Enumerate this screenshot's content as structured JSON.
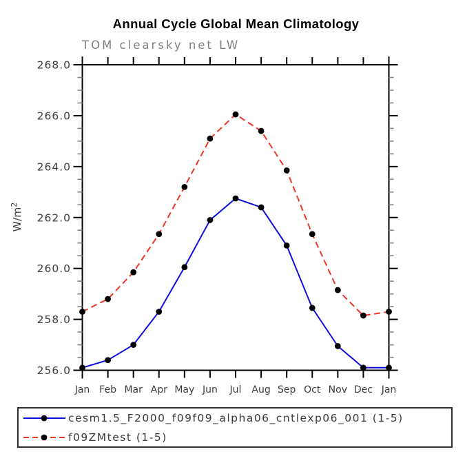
{
  "chart_data": {
    "type": "line",
    "title": "Annual Cycle Global Mean Climatology",
    "subtitle": "TOM clearsky net LW",
    "ylabel": "W/m²",
    "xlabel": "",
    "x_categories": [
      "Jan",
      "Feb",
      "Mar",
      "Apr",
      "May",
      "Jun",
      "Jul",
      "Aug",
      "Sep",
      "Oct",
      "Nov",
      "Dec",
      "Jan"
    ],
    "ylim": [
      256.0,
      268.0
    ],
    "ytick_interval": 2.0,
    "yminor_interval": 0.5,
    "ytick_labels": [
      "256.0",
      "258.0",
      "260.0",
      "262.0",
      "264.0",
      "266.0",
      "268.0"
    ],
    "grid": "off",
    "legend_position": "bottom-box",
    "series": [
      {
        "name": "cesm1.5_F2000_f09f09_alpha06_cntlexp06_001",
        "legend_label": "cesm1.5_F2000_f09f09_alpha06_cntlexp06_001 (1-5)",
        "color": "#0d0de0",
        "line_style": "solid",
        "marker": "filled-circle",
        "marker_color": "#000000",
        "values": [
          256.1,
          256.4,
          257.0,
          258.3,
          260.05,
          261.9,
          262.75,
          262.4,
          260.9,
          258.45,
          256.95,
          256.1,
          256.1
        ]
      },
      {
        "name": "f09ZMtest",
        "legend_label": "f09ZMtest (1-5)",
        "color": "#ee3526",
        "line_style": "dashed",
        "marker": "filled-circle",
        "marker_color": "#000000",
        "values": [
          258.3,
          258.8,
          259.85,
          261.35,
          263.2,
          265.1,
          266.05,
          265.4,
          263.85,
          261.35,
          259.15,
          258.15,
          258.3
        ]
      }
    ],
    "style_colors": {
      "axis": "#000000",
      "tick_label": "#3d3d3d",
      "subtitle": "#7e7e7e",
      "minor_tick": "#808080",
      "background": "#ffffff"
    }
  }
}
